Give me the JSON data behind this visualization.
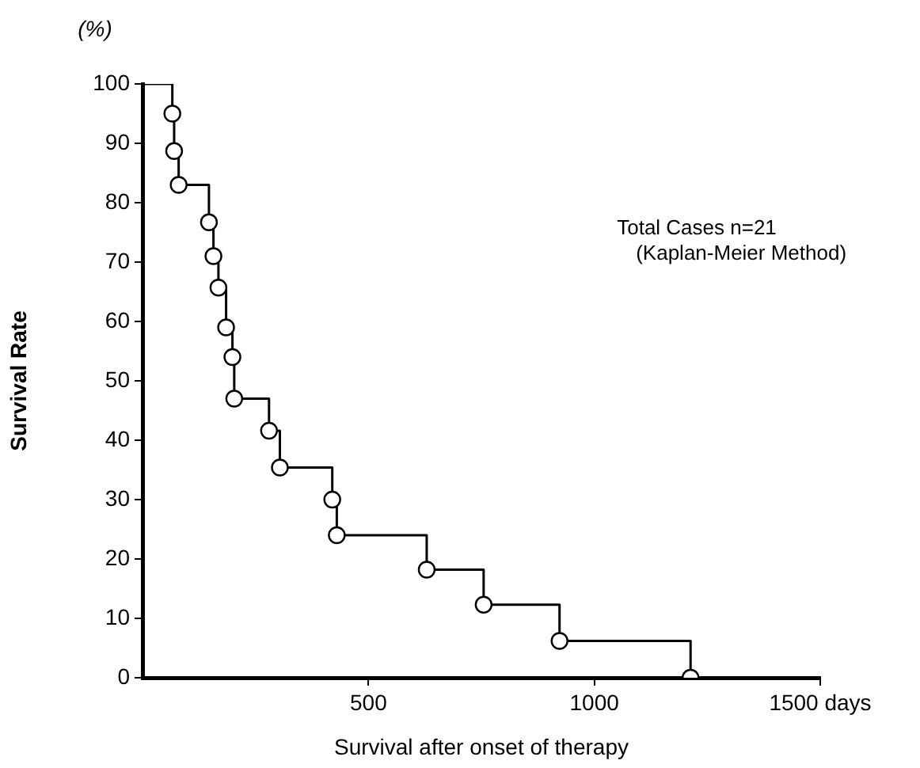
{
  "chart_data": {
    "type": "step",
    "xlabel": "Survival after onset of therapy",
    "ylabel": "Survival Rate",
    "annotations": [
      "(%)",
      "Total Cases n=21",
      "(Kaplan-Meier Method)"
    ],
    "series": [
      {
        "color": "#000000",
        "x": [
          0,
          66,
          70,
          80,
          147,
          157,
          168,
          185,
          199,
          203,
          280,
          304,
          420,
          430,
          629,
          755,
          923,
          1213
        ],
        "values": [
          100,
          95,
          88.7,
          83,
          76.7,
          71,
          65.7,
          59,
          54,
          47,
          41.6,
          35.4,
          30,
          24,
          18.2,
          12.3,
          6.2,
          0
        ]
      }
    ],
    "xlim": [
      0,
      1500
    ],
    "xticks": [
      500,
      1000,
      {
        "value": 1500,
        "label": "1500 days"
      }
    ],
    "ylim": [
      0,
      100
    ],
    "yticks": [
      0,
      10,
      20,
      30,
      40,
      50,
      60,
      70,
      80,
      90,
      100
    ],
    "grid": false,
    "legend": false,
    "marker": "circle",
    "line_style": "solid"
  }
}
